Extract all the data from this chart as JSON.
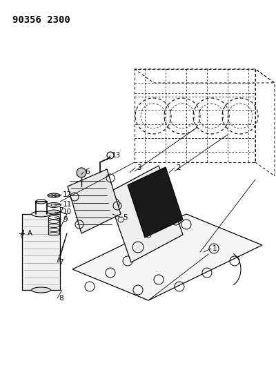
{
  "title": "90356 2300",
  "bg_color": "#ffffff",
  "line_color": "#000000",
  "fig_width": 4.0,
  "fig_height": 5.33,
  "dpi": 100
}
